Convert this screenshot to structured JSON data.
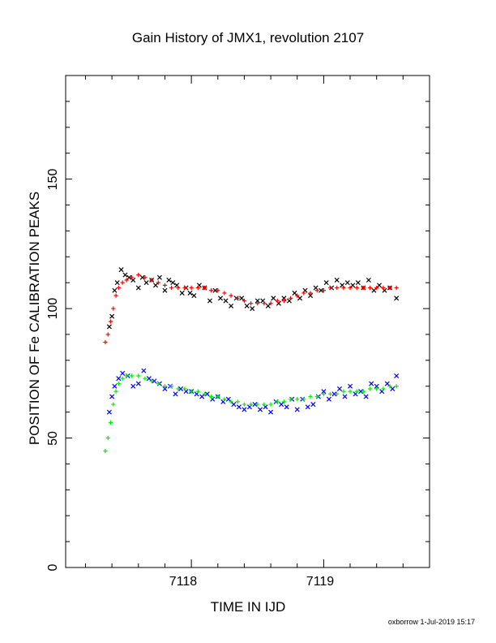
{
  "chart_data": {
    "type": "scatter",
    "title": "Gain History of JMX1, revolution 2107",
    "xlabel": "TIME IN IJD",
    "ylabel": "POSITION OF Fe CALIBRATION PEAKS",
    "xlim": [
      7117.05,
      7119.8
    ],
    "ylim": [
      0,
      190
    ],
    "x_ticks": [
      "7118",
      "7119"
    ],
    "y_ticks": [
      "0",
      "50",
      "100",
      "150"
    ],
    "footer": "oxborrow  1-Jul-2019 15:17",
    "colors": {
      "upper_raw": "#000000",
      "upper_fit": "#ff0000",
      "lower_raw": "#0000ff",
      "lower_fit": "#00ee00"
    },
    "series": [
      {
        "marker": "x",
        "color": "#000000",
        "x": [
          7117.38,
          7117.4,
          7117.42,
          7117.44,
          7117.47,
          7117.5,
          7117.53,
          7117.56,
          7117.6,
          7117.63,
          7117.66,
          7117.7,
          7117.73,
          7117.76,
          7117.8,
          7117.83,
          7117.86,
          7117.89,
          7117.93,
          7117.96,
          7117.99,
          7118.02,
          7118.06,
          7118.1,
          7118.14,
          7118.18,
          7118.22,
          7118.26,
          7118.3,
          7118.34,
          7118.38,
          7118.42,
          7118.46,
          7118.5,
          7118.54,
          7118.58,
          7118.62,
          7118.66,
          7118.7,
          7118.74,
          7118.78,
          7118.82,
          7118.86,
          7118.9,
          7118.94,
          7118.98,
          7119.02,
          7119.06,
          7119.1,
          7119.14,
          7119.18,
          7119.22,
          7119.26,
          7119.3,
          7119.34,
          7119.38,
          7119.42,
          7119.46,
          7119.5,
          7119.55
        ],
        "y": [
          93,
          97,
          107,
          110,
          115,
          113,
          112,
          111,
          108,
          112,
          110,
          111,
          109,
          112,
          107,
          111,
          110,
          109,
          106,
          108,
          106,
          105,
          109,
          108,
          103,
          107,
          104,
          103,
          101,
          104,
          104,
          101,
          100,
          103,
          103,
          101,
          104,
          102,
          104,
          103,
          106,
          104,
          107,
          105,
          108,
          107,
          110,
          108,
          111,
          109,
          110,
          109,
          110,
          108,
          111,
          107,
          109,
          107,
          108,
          104
        ]
      },
      {
        "marker": "+",
        "color": "#ff0000",
        "x": [
          7117.35,
          7117.37,
          7117.39,
          7117.41,
          7117.43,
          7117.45,
          7117.48,
          7117.51,
          7117.55,
          7117.6,
          7117.65,
          7117.7,
          7117.75,
          7117.8,
          7117.85,
          7117.9,
          7117.95,
          7118.0,
          7118.05,
          7118.1,
          7118.15,
          7118.2,
          7118.25,
          7118.3,
          7118.35,
          7118.4,
          7118.45,
          7118.5,
          7118.55,
          7118.6,
          7118.65,
          7118.7,
          7118.75,
          7118.8,
          7118.85,
          7118.9,
          7118.95,
          7119.0,
          7119.05,
          7119.1,
          7119.15,
          7119.2,
          7119.25,
          7119.3,
          7119.35,
          7119.4,
          7119.45,
          7119.5,
          7119.55
        ],
        "y": [
          87,
          90,
          95,
          100,
          105,
          108,
          110,
          111,
          112,
          113,
          112,
          111,
          110,
          109,
          108,
          108,
          108,
          108,
          108,
          108,
          107,
          107,
          106,
          105,
          104,
          103,
          102,
          102,
          102,
          102,
          103,
          103,
          104,
          105,
          106,
          106,
          107,
          107,
          108,
          108,
          108,
          108,
          108,
          108,
          108,
          108,
          108,
          108,
          108
        ]
      },
      {
        "marker": "x",
        "color": "#0000ff",
        "x": [
          7117.38,
          7117.4,
          7117.42,
          7117.45,
          7117.48,
          7117.52,
          7117.56,
          7117.6,
          7117.64,
          7117.68,
          7117.72,
          7117.76,
          7117.8,
          7117.84,
          7117.88,
          7117.92,
          7117.96,
          7118.0,
          7118.04,
          7118.08,
          7118.12,
          7118.16,
          7118.2,
          7118.24,
          7118.28,
          7118.32,
          7118.36,
          7118.4,
          7118.44,
          7118.48,
          7118.52,
          7118.56,
          7118.6,
          7118.64,
          7118.68,
          7118.72,
          7118.76,
          7118.8,
          7118.84,
          7118.88,
          7118.92,
          7118.96,
          7119.0,
          7119.04,
          7119.08,
          7119.12,
          7119.16,
          7119.2,
          7119.24,
          7119.28,
          7119.32,
          7119.36,
          7119.4,
          7119.44,
          7119.48,
          7119.52,
          7119.55
        ],
        "y": [
          60,
          66,
          70,
          73,
          75,
          74,
          70,
          71,
          76,
          73,
          72,
          71,
          69,
          70,
          67,
          69,
          68,
          68,
          67,
          66,
          67,
          65,
          66,
          64,
          65,
          63,
          62,
          61,
          62,
          63,
          61,
          62,
          60,
          64,
          63,
          62,
          65,
          61,
          65,
          62,
          63,
          66,
          68,
          65,
          67,
          69,
          66,
          70,
          67,
          68,
          66,
          71,
          70,
          68,
          71,
          69,
          74
        ]
      },
      {
        "marker": "+",
        "color": "#00ee00",
        "x": [
          7117.35,
          7117.37,
          7117.39,
          7117.41,
          7117.43,
          7117.45,
          7117.48,
          7117.51,
          7117.55,
          7117.6,
          7117.65,
          7117.7,
          7117.75,
          7117.8,
          7117.85,
          7117.9,
          7117.95,
          7118.0,
          7118.05,
          7118.1,
          7118.15,
          7118.2,
          7118.25,
          7118.3,
          7118.35,
          7118.4,
          7118.45,
          7118.5,
          7118.55,
          7118.6,
          7118.65,
          7118.7,
          7118.75,
          7118.8,
          7118.85,
          7118.9,
          7118.95,
          7119.0,
          7119.05,
          7119.1,
          7119.15,
          7119.2,
          7119.25,
          7119.3,
          7119.35,
          7119.4,
          7119.45,
          7119.5,
          7119.55
        ],
        "y": [
          45,
          50,
          56,
          63,
          68,
          71,
          73,
          74,
          74,
          74,
          73,
          72,
          71,
          70,
          70,
          69,
          69,
          68,
          68,
          67,
          66,
          66,
          65,
          64,
          64,
          63,
          63,
          63,
          63,
          63,
          64,
          64,
          65,
          65,
          65,
          66,
          66,
          67,
          67,
          67,
          68,
          68,
          68,
          68,
          69,
          69,
          69,
          70,
          70
        ]
      }
    ]
  }
}
